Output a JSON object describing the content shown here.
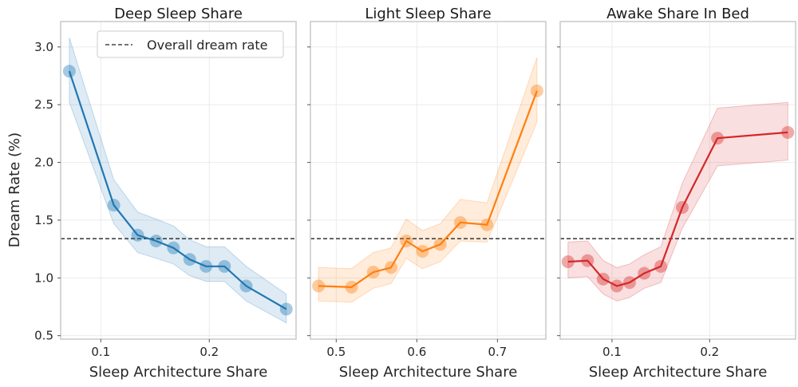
{
  "figure": {
    "ylabel": "Dream Rate (%)",
    "yticks": [
      0.5,
      1.0,
      1.5,
      2.0,
      2.5,
      3.0
    ],
    "ylim": [
      0.47,
      3.22
    ],
    "reference_line": {
      "label": "Overall dream rate",
      "value": 1.34,
      "color": "#222222"
    },
    "legend_position": "upper-right of first panel"
  },
  "chart_data": [
    {
      "type": "line",
      "title": "Deep Sleep Share",
      "xlabel": "Sleep Architecture Share",
      "ylabel": "Dream Rate (%)",
      "color": "#1f77b4",
      "xlim": [
        0.063,
        0.28
      ],
      "xticks": [
        0.1,
        0.2
      ],
      "ylim": [
        0.47,
        3.22
      ],
      "grid": true,
      "series": [
        {
          "x": [
            0.071,
            0.112,
            0.134,
            0.151,
            0.167,
            0.182,
            0.197,
            0.214,
            0.234,
            0.271
          ],
          "y": [
            2.79,
            1.63,
            1.37,
            1.32,
            1.26,
            1.16,
            1.1,
            1.1,
            0.93,
            0.73
          ],
          "lower": [
            2.52,
            1.47,
            1.22,
            1.17,
            1.12,
            1.02,
            0.97,
            0.97,
            0.8,
            0.61
          ],
          "upper": [
            3.08,
            1.85,
            1.57,
            1.51,
            1.45,
            1.33,
            1.27,
            1.27,
            1.1,
            0.86
          ]
        }
      ]
    },
    {
      "type": "line",
      "title": "Light Sleep Share",
      "xlabel": "Sleep Architecture Share",
      "color": "#ff7f0e",
      "xlim": [
        0.468,
        0.76
      ],
      "xticks": [
        0.5,
        0.6,
        0.7
      ],
      "ylim": [
        0.47,
        3.22
      ],
      "grid": true,
      "series": [
        {
          "x": [
            0.478,
            0.519,
            0.546,
            0.568,
            0.587,
            0.607,
            0.629,
            0.654,
            0.687,
            0.749
          ],
          "y": [
            0.93,
            0.92,
            1.05,
            1.09,
            1.32,
            1.23,
            1.29,
            1.48,
            1.46,
            2.62
          ],
          "lower": [
            0.8,
            0.79,
            0.91,
            0.95,
            1.17,
            1.08,
            1.14,
            1.32,
            1.31,
            2.35
          ],
          "upper": [
            1.09,
            1.08,
            1.22,
            1.26,
            1.51,
            1.41,
            1.47,
            1.68,
            1.65,
            2.91
          ]
        }
      ]
    },
    {
      "type": "line",
      "title": "Awake Share In Bed",
      "xlabel": "Sleep Architecture Share",
      "color": "#d62728",
      "xlim": [
        0.047,
        0.288
      ],
      "xticks": [
        0.1,
        0.2
      ],
      "ylim": [
        0.47,
        3.22
      ],
      "grid": true,
      "series": [
        {
          "x": [
            0.055,
            0.075,
            0.091,
            0.105,
            0.118,
            0.133,
            0.15,
            0.172,
            0.208,
            0.28
          ],
          "y": [
            1.14,
            1.15,
            0.99,
            0.93,
            0.96,
            1.04,
            1.1,
            1.61,
            2.21,
            2.26
          ],
          "lower": [
            1.0,
            1.01,
            0.86,
            0.8,
            0.83,
            0.91,
            0.96,
            1.43,
            1.97,
            2.02
          ],
          "upper": [
            1.31,
            1.32,
            1.15,
            1.09,
            1.12,
            1.2,
            1.27,
            1.82,
            2.47,
            2.52
          ]
        }
      ]
    }
  ]
}
